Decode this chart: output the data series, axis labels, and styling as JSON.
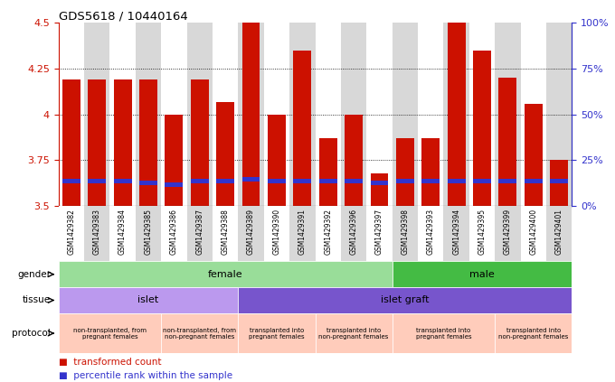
{
  "title": "GDS5618 / 10440164",
  "samples": [
    "GSM1429382",
    "GSM1429383",
    "GSM1429384",
    "GSM1429385",
    "GSM1429386",
    "GSM1429387",
    "GSM1429388",
    "GSM1429389",
    "GSM1429390",
    "GSM1429391",
    "GSM1429392",
    "GSM1429396",
    "GSM1429397",
    "GSM1429398",
    "GSM1429393",
    "GSM1429394",
    "GSM1429395",
    "GSM1429399",
    "GSM1429400",
    "GSM1429401"
  ],
  "bar_values": [
    4.19,
    4.19,
    4.19,
    4.19,
    4.0,
    4.19,
    4.07,
    4.5,
    4.0,
    4.35,
    3.87,
    4.0,
    3.68,
    3.87,
    3.87,
    4.5,
    4.35,
    4.2,
    4.06,
    3.75
  ],
  "percentile_values": [
    3.635,
    3.635,
    3.635,
    3.625,
    3.615,
    3.635,
    3.635,
    3.645,
    3.635,
    3.635,
    3.635,
    3.635,
    3.625,
    3.635,
    3.635,
    3.635,
    3.635,
    3.635,
    3.635,
    3.635
  ],
  "y_min": 3.5,
  "y_max": 4.5,
  "bar_color": "#cc1100",
  "blue_color": "#3333cc",
  "gender_data": [
    {
      "label": "female",
      "start": 0,
      "end": 13,
      "color": "#99dd99"
    },
    {
      "label": "male",
      "start": 13,
      "end": 20,
      "color": "#44bb44"
    }
  ],
  "tissue_data": [
    {
      "label": "islet",
      "start": 0,
      "end": 7,
      "color": "#bb99ee"
    },
    {
      "label": "islet graft",
      "start": 7,
      "end": 20,
      "color": "#7755cc"
    }
  ],
  "protocol_data": [
    {
      "label": "non-transplanted, from\npregnant females",
      "start": 0,
      "end": 4,
      "color": "#ffccbb"
    },
    {
      "label": "non-transplanted, from\nnon-pregnant females",
      "start": 4,
      "end": 7,
      "color": "#ffccbb"
    },
    {
      "label": "transplanted into\npregnant females",
      "start": 7,
      "end": 10,
      "color": "#ffccbb"
    },
    {
      "label": "transplanted into\nnon-pregnant females",
      "start": 10,
      "end": 13,
      "color": "#ffccbb"
    },
    {
      "label": "transplanted into\npregnant females",
      "start": 13,
      "end": 17,
      "color": "#ffccbb"
    },
    {
      "label": "transplanted into\nnon-pregnant females",
      "start": 17,
      "end": 20,
      "color": "#ffccbb"
    }
  ]
}
